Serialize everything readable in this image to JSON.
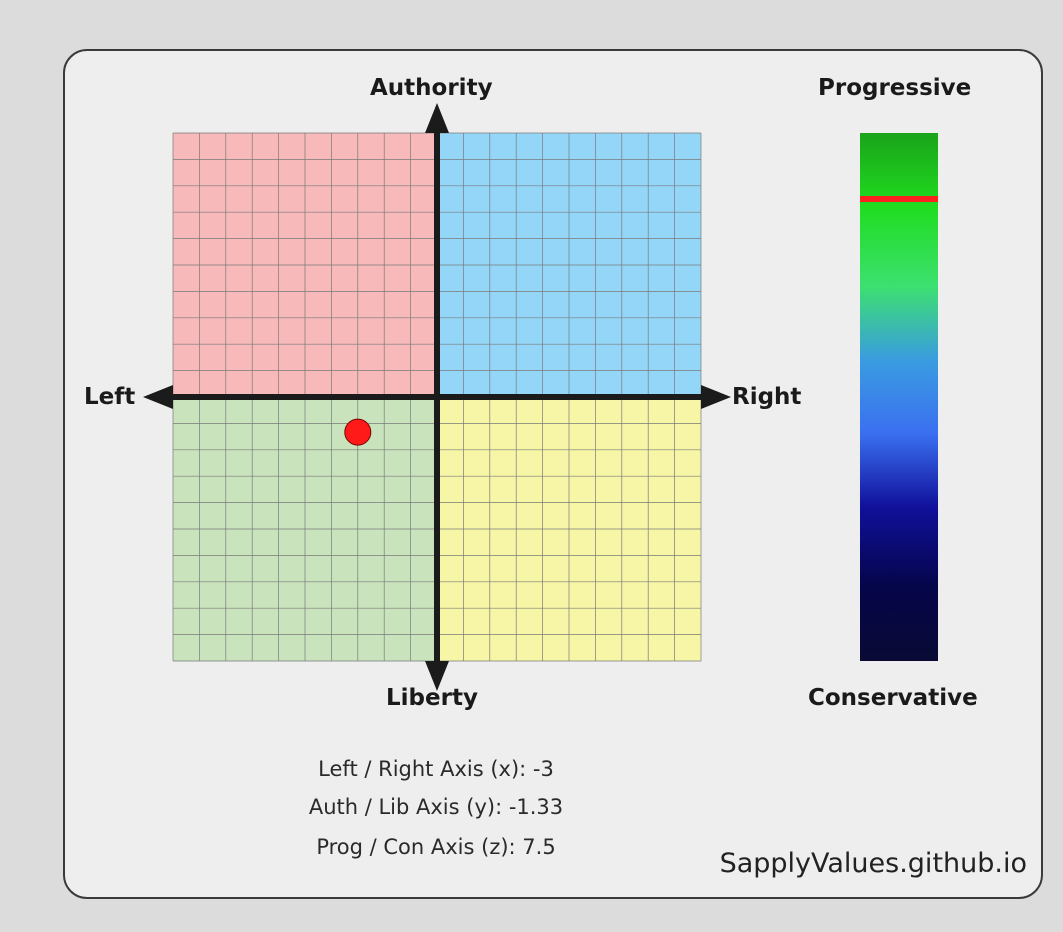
{
  "chart_data": {
    "type": "scatter",
    "labels": {
      "top": "Authority",
      "bottom": "Liberty",
      "left": "Left",
      "right": "Right",
      "z_top": "Progressive",
      "z_bottom": "Conservative"
    },
    "xlim": [
      -10,
      10
    ],
    "ylim": [
      -10,
      10
    ],
    "zlim": [
      -10,
      10
    ],
    "grid": true,
    "grid_divisions": 20,
    "point": {
      "x": -3,
      "y": -1.33,
      "z": 7.5
    },
    "colors": {
      "auth_left": "#f7b9b9",
      "auth_right": "#93d6f7",
      "lib_left": "#c9e3bd",
      "lib_right": "#f7f5a6",
      "point": "#ff1a1a",
      "z_marker": "#ff2020",
      "z_gradient": [
        "#1aa31a",
        "#20dd20",
        "#3ce070",
        "#3a9ce0",
        "#3a6ff0",
        "#10109a",
        "#05054a",
        "#0a0a35"
      ]
    }
  },
  "results": {
    "x_line": "Left / Right Axis (x): -3",
    "y_line": "Auth / Lib Axis (y): -1.33",
    "z_line": "Prog / Con Axis (z): 7.5"
  },
  "site": "SapplyValues.github.io"
}
